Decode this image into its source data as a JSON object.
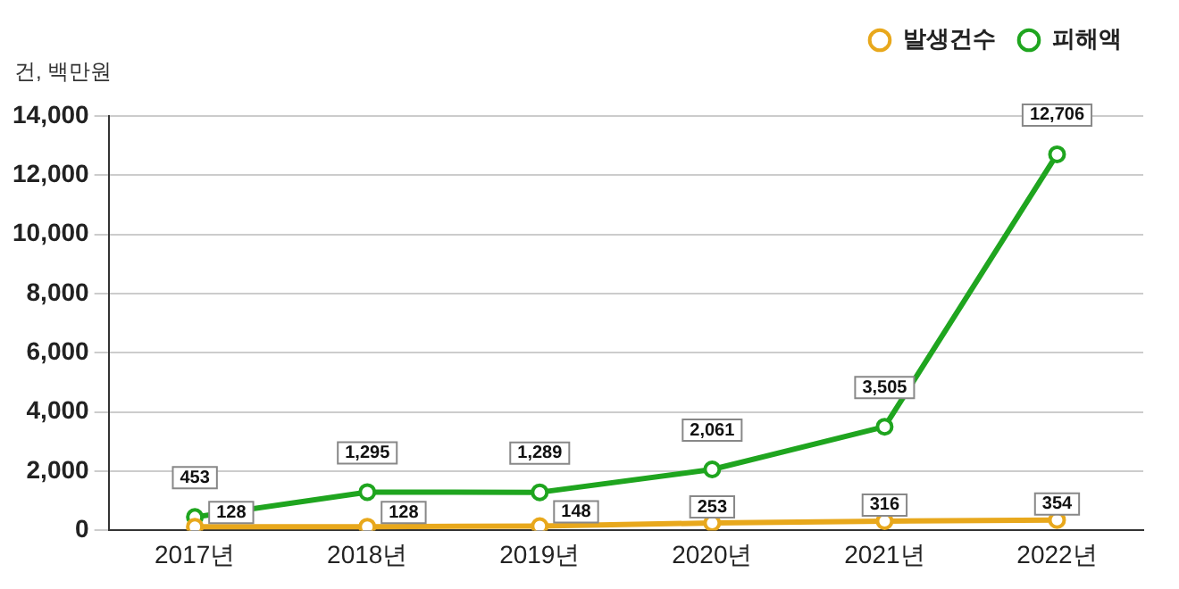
{
  "chart_data": {
    "type": "line",
    "ylabel": "건, 백만원",
    "categories": [
      "2017년",
      "2018년",
      "2019년",
      "2020년",
      "2021년",
      "2022년"
    ],
    "series": [
      {
        "name": "발생건수",
        "color": "#e8a81c",
        "values": [
          128,
          128,
          148,
          253,
          316,
          354
        ],
        "value_labels": [
          "128",
          "128",
          "148",
          "253",
          "316",
          "354"
        ]
      },
      {
        "name": "피해액",
        "color": "#1fa51f",
        "values": [
          453,
          1295,
          1289,
          2061,
          3505,
          12706
        ],
        "value_labels": [
          "453",
          "1,295",
          "1,289",
          "2,061",
          "3,505",
          "12,706"
        ]
      }
    ],
    "ylim": [
      0,
      14000
    ],
    "yticks": [
      {
        "value": 0,
        "label": "0"
      },
      {
        "value": 2000,
        "label": "2,000"
      },
      {
        "value": 4000,
        "label": "4,000"
      },
      {
        "value": 6000,
        "label": "6,000"
      },
      {
        "value": 8000,
        "label": "8,000"
      },
      {
        "value": 10000,
        "label": "10,000"
      },
      {
        "value": 12000,
        "label": "12,000"
      },
      {
        "value": 14000,
        "label": "14,000"
      }
    ],
    "grid": "y",
    "legend": "top right",
    "marker": "circle",
    "line_style": "solid",
    "data_labels": true
  }
}
